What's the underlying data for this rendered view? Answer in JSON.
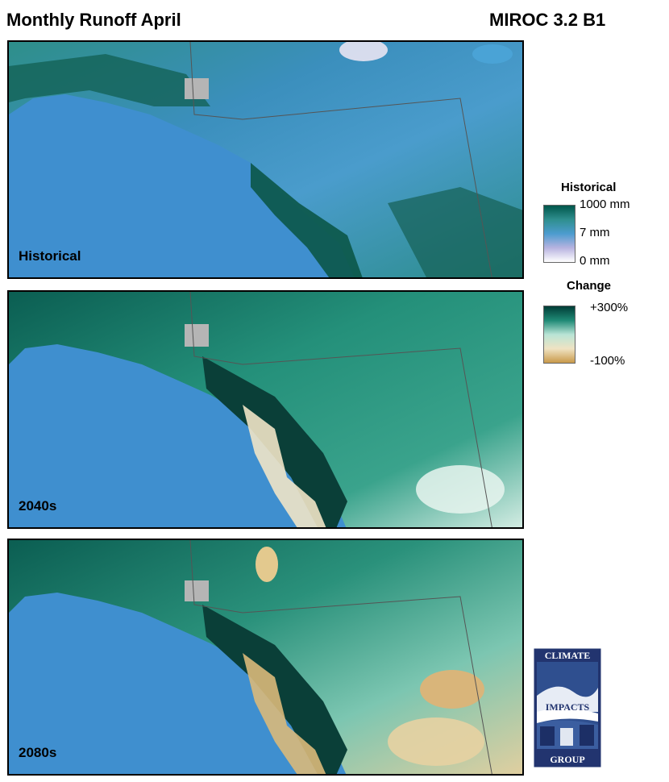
{
  "header": {
    "title": "Monthly Runoff April",
    "model": "MIROC 3.2 B1"
  },
  "panels": [
    {
      "label": "Historical",
      "scheme": "historical"
    },
    {
      "label": "2040s",
      "scheme": "change"
    },
    {
      "label": "2080s",
      "scheme": "change"
    }
  ],
  "legend": {
    "historical": {
      "title": "Historical",
      "ticks": [
        "1000 mm",
        "7 mm",
        "0 mm"
      ],
      "colors": [
        "#00564a",
        "#2f8f8f",
        "#4d9ccf",
        "#b7b3e0",
        "#ffffff"
      ]
    },
    "change": {
      "title": "Change",
      "ticks": [
        "+300%",
        "-100%"
      ],
      "colors": [
        "#003c36",
        "#1f8a76",
        "#b9e4d6",
        "#efe3c3",
        "#c99a4a"
      ]
    }
  },
  "map_colors": {
    "ocean": "#3f8fcf",
    "missing": "#b5b5b5",
    "boundary": "#555555"
  },
  "logo": {
    "line1": "CLIMATE",
    "line2": "IMPACTS",
    "line3": "GROUP"
  }
}
